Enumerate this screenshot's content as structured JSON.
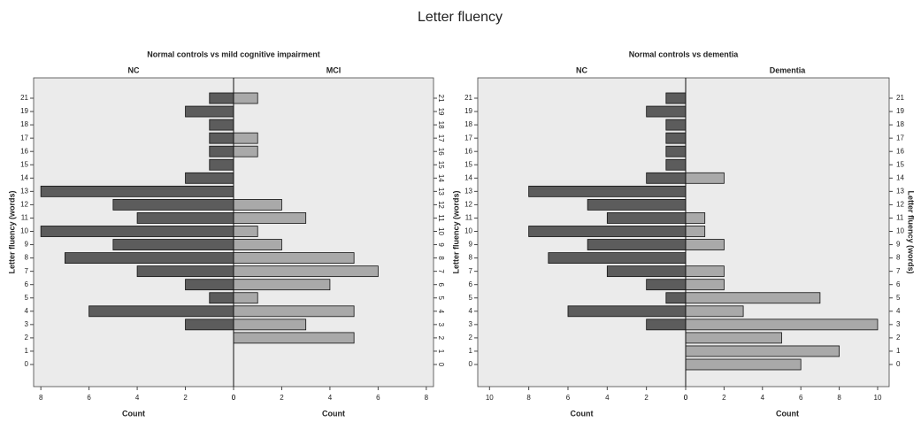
{
  "title": "Letter fluency",
  "chart_data": [
    {
      "type": "bar",
      "title": "Normal controls vs mild cognitive impairment",
      "y_label": "Letter fluency (words)",
      "x_label": "Count",
      "y_label_both_sides": false,
      "right_tick_labels_rotated": true,
      "categories": [
        "0",
        "1",
        "2",
        "3",
        "4",
        "5",
        "6",
        "7",
        "8",
        "9",
        "10",
        "11",
        "12",
        "13",
        "14",
        "15",
        "16",
        "17",
        "18",
        "19",
        "21"
      ],
      "series": [
        {
          "name": "NC",
          "color": "#5c5c5c",
          "values": [
            0,
            0,
            0,
            2,
            6,
            1,
            2,
            4,
            7,
            5,
            8,
            4,
            5,
            8,
            2,
            1,
            1,
            1,
            1,
            2,
            1
          ]
        },
        {
          "name": "MCI",
          "color": "#a9a9a9",
          "values": [
            0,
            0,
            5,
            3,
            5,
            1,
            4,
            6,
            5,
            2,
            1,
            3,
            2,
            0,
            0,
            0,
            1,
            1,
            0,
            0,
            1
          ]
        }
      ],
      "xlim": [
        0,
        8.3
      ],
      "xticks": [
        0,
        2,
        4,
        6,
        8
      ]
    },
    {
      "type": "bar",
      "title": "Normal controls vs dementia",
      "y_label": "Letter fluency (words)",
      "x_label": "Count",
      "y_label_both_sides": true,
      "right_tick_labels_rotated": false,
      "categories": [
        "0",
        "1",
        "2",
        "3",
        "4",
        "5",
        "6",
        "7",
        "8",
        "9",
        "10",
        "11",
        "12",
        "13",
        "14",
        "15",
        "16",
        "17",
        "18",
        "19",
        "21"
      ],
      "series": [
        {
          "name": "NC",
          "color": "#5c5c5c",
          "values": [
            0,
            0,
            0,
            2,
            6,
            1,
            2,
            4,
            7,
            5,
            8,
            4,
            5,
            8,
            2,
            1,
            1,
            1,
            1,
            2,
            1
          ]
        },
        {
          "name": "Dementia",
          "color": "#a9a9a9",
          "values": [
            6,
            8,
            5,
            10,
            3,
            7,
            2,
            2,
            0,
            2,
            1,
            1,
            0,
            0,
            2,
            0,
            0,
            0,
            0,
            0,
            0
          ]
        }
      ],
      "xlim": [
        0,
        10.6
      ],
      "xticks": [
        0,
        2,
        4,
        6,
        8,
        10
      ]
    }
  ]
}
